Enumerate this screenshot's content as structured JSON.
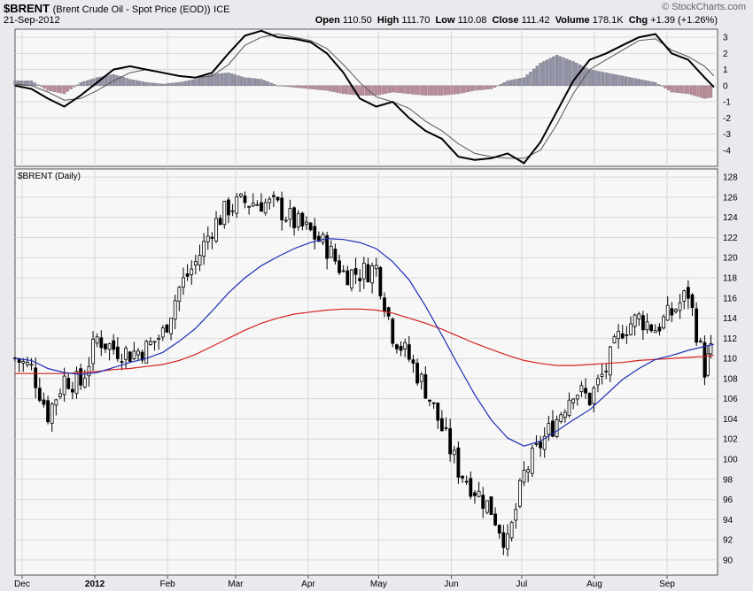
{
  "header": {
    "symbol": "$BRENT",
    "description": "(Brent Crude Oil - Spot Price (EOD))",
    "exchange": "ICE",
    "date": "21-Sep-2012",
    "watermark": "© StockCharts.com",
    "open_label": "Open",
    "open": "110.50",
    "high_label": "High",
    "high": "111.70",
    "low_label": "Low",
    "low": "110.08",
    "close_label": "Close",
    "close": "111.42",
    "volume_label": "Volume",
    "volume": "178.1K",
    "chg_label": "Chg",
    "chg": "+1.39 (+1.26%)"
  },
  "colors": {
    "background": "#e9e9ee",
    "panel": "#f7f7f7",
    "grid": "#d8d8d8",
    "sma_short": "#1f2fb5",
    "sma_long": "#d42020",
    "histogram_positive": "#9090a8",
    "histogram_negative": "#c08a99",
    "macd": "#000000",
    "signal": "#555555"
  },
  "chart_data": [
    {
      "type": "line",
      "panel": "indicator",
      "ylim": [
        -5,
        3.5
      ],
      "y_ticks": [
        "3",
        "2",
        "1",
        "0",
        "-1",
        "-2",
        "-3",
        "-4"
      ],
      "x": [
        "2011-11-28",
        "2011-12-05",
        "2011-12-12",
        "2011-12-19",
        "2011-12-26",
        "2012-01-02",
        "2012-01-09",
        "2012-01-16",
        "2012-01-23",
        "2012-01-30",
        "2012-02-06",
        "2012-02-13",
        "2012-02-20",
        "2012-02-27",
        "2012-03-05",
        "2012-03-12",
        "2012-03-19",
        "2012-03-26",
        "2012-04-02",
        "2012-04-09",
        "2012-04-16",
        "2012-04-23",
        "2012-04-30",
        "2012-05-07",
        "2012-05-14",
        "2012-05-21",
        "2012-05-28",
        "2012-06-04",
        "2012-06-11",
        "2012-06-18",
        "2012-06-25",
        "2012-07-02",
        "2012-07-09",
        "2012-07-16",
        "2012-07-23",
        "2012-07-30",
        "2012-08-06",
        "2012-08-13",
        "2012-08-20",
        "2012-08-27",
        "2012-09-03",
        "2012-09-10",
        "2012-09-17",
        "2012-09-21"
      ],
      "series": [
        {
          "values": [
            0.0,
            -0.2,
            -0.8,
            -1.3,
            -0.6,
            0.2,
            1.0,
            1.2,
            1.0,
            0.8,
            0.6,
            0.5,
            0.8,
            2.0,
            3.1,
            3.4,
            3.0,
            2.9,
            2.7,
            2.0,
            0.8,
            -0.8,
            -1.3,
            -1.0,
            -2.0,
            -2.8,
            -3.3,
            -4.4,
            -4.6,
            -4.5,
            -4.2,
            -4.8,
            -3.5,
            -1.6,
            0.3,
            1.6,
            2.0,
            2.5,
            3.0,
            3.2,
            2.0,
            1.6,
            0.5,
            -0.1
          ]
        },
        {
          "values": [
            0.1,
            0.0,
            -0.4,
            -0.9,
            -0.8,
            -0.3,
            0.3,
            0.8,
            1.0,
            0.8,
            0.6,
            0.5,
            0.6,
            1.3,
            2.5,
            3.0,
            3.2,
            3.0,
            2.8,
            2.3,
            1.3,
            0.2,
            -0.7,
            -1.0,
            -1.4,
            -2.2,
            -2.8,
            -3.6,
            -4.2,
            -4.4,
            -4.5,
            -4.5,
            -4.0,
            -2.4,
            -0.5,
            1.0,
            1.6,
            2.2,
            2.8,
            2.9,
            2.2,
            1.8,
            1.2,
            0.6
          ]
        },
        {
          "type": "bar",
          "values": [
            0.3,
            0.3,
            -0.3,
            -0.5,
            0.2,
            0.5,
            0.7,
            0.4,
            0.2,
            0.1,
            0.2,
            0.4,
            0.7,
            0.8,
            0.5,
            0.4,
            0.0,
            -0.1,
            -0.2,
            -0.3,
            -0.5,
            -0.6,
            -0.6,
            -0.4,
            -0.5,
            -0.6,
            -0.6,
            -0.5,
            -0.3,
            -0.2,
            0.3,
            0.5,
            1.4,
            1.9,
            1.5,
            1.0,
            0.8,
            0.6,
            0.4,
            0.2,
            -0.4,
            -0.5,
            -0.8,
            -0.7
          ]
        }
      ]
    },
    {
      "type": "candlestick",
      "panel": "price",
      "panel_label": "$BRENT (Daily)",
      "ylim": [
        88.5,
        128.8
      ],
      "y_ticks": [
        "128",
        "126",
        "124",
        "122",
        "120",
        "118",
        "116",
        "114",
        "112",
        "110",
        "108",
        "106",
        "104",
        "102",
        "100",
        "98",
        "96",
        "94",
        "92",
        "90"
      ],
      "x_ticks": [
        "Dec",
        "2012",
        "Feb",
        "Mar",
        "Apr",
        "May",
        "Jun",
        "Jul",
        "Aug",
        "Sep"
      ],
      "x": [
        "2011-11-28",
        "2011-12-05",
        "2011-12-12",
        "2011-12-19",
        "2011-12-26",
        "2012-01-02",
        "2012-01-09",
        "2012-01-16",
        "2012-01-23",
        "2012-01-30",
        "2012-02-06",
        "2012-02-13",
        "2012-02-20",
        "2012-02-27",
        "2012-03-05",
        "2012-03-12",
        "2012-03-19",
        "2012-03-26",
        "2012-04-02",
        "2012-04-09",
        "2012-04-16",
        "2012-04-23",
        "2012-04-30",
        "2012-05-07",
        "2012-05-14",
        "2012-05-21",
        "2012-05-28",
        "2012-06-04",
        "2012-06-11",
        "2012-06-18",
        "2012-06-25",
        "2012-07-02",
        "2012-07-09",
        "2012-07-16",
        "2012-07-23",
        "2012-07-30",
        "2012-08-06",
        "2012-08-13",
        "2012-08-20",
        "2012-08-27",
        "2012-09-03",
        "2012-09-10",
        "2012-09-17",
        "2012-09-21"
      ],
      "close": [
        110.0,
        109.0,
        104.5,
        108.0,
        107.5,
        112.0,
        111.0,
        110.5,
        111.0,
        112.5,
        117.0,
        119.5,
        123.0,
        125.0,
        125.5,
        125.5,
        125.0,
        123.5,
        122.5,
        121.0,
        118.5,
        118.5,
        119.0,
        112.5,
        110.0,
        107.0,
        103.0,
        99.0,
        97.0,
        95.0,
        91.5,
        98.5,
        101.5,
        104.0,
        107.0,
        106.0,
        109.0,
        113.0,
        114.0,
        113.0,
        114.5,
        116.5,
        109.0,
        111.4
      ],
      "series": [
        {
          "name": "sma_short",
          "values": [
            110.0,
            109.8,
            109.0,
            108.6,
            108.4,
            108.6,
            109.1,
            109.6,
            110.0,
            110.6,
            111.7,
            113.0,
            114.7,
            116.5,
            118.0,
            119.2,
            120.1,
            120.9,
            121.5,
            121.9,
            121.8,
            121.5,
            120.9,
            119.6,
            117.8,
            115.2,
            112.3,
            109.3,
            106.4,
            103.9,
            102.1,
            101.3,
            101.8,
            102.8,
            103.9,
            104.9,
            106.4,
            107.9,
            109.0,
            109.9,
            110.3,
            110.8,
            111.2,
            111.4
          ]
        },
        {
          "name": "sma_long",
          "values": [
            108.5,
            108.5,
            108.5,
            108.5,
            108.6,
            108.7,
            108.9,
            109.0,
            109.2,
            109.4,
            109.8,
            110.4,
            111.2,
            112.0,
            112.8,
            113.5,
            114.0,
            114.4,
            114.6,
            114.8,
            114.9,
            114.9,
            114.8,
            114.5,
            114.0,
            113.5,
            112.9,
            112.2,
            111.5,
            110.9,
            110.3,
            109.8,
            109.5,
            109.3,
            109.3,
            109.4,
            109.5,
            109.6,
            109.8,
            109.9,
            110.0,
            110.1,
            110.2,
            110.3
          ]
        }
      ]
    }
  ]
}
